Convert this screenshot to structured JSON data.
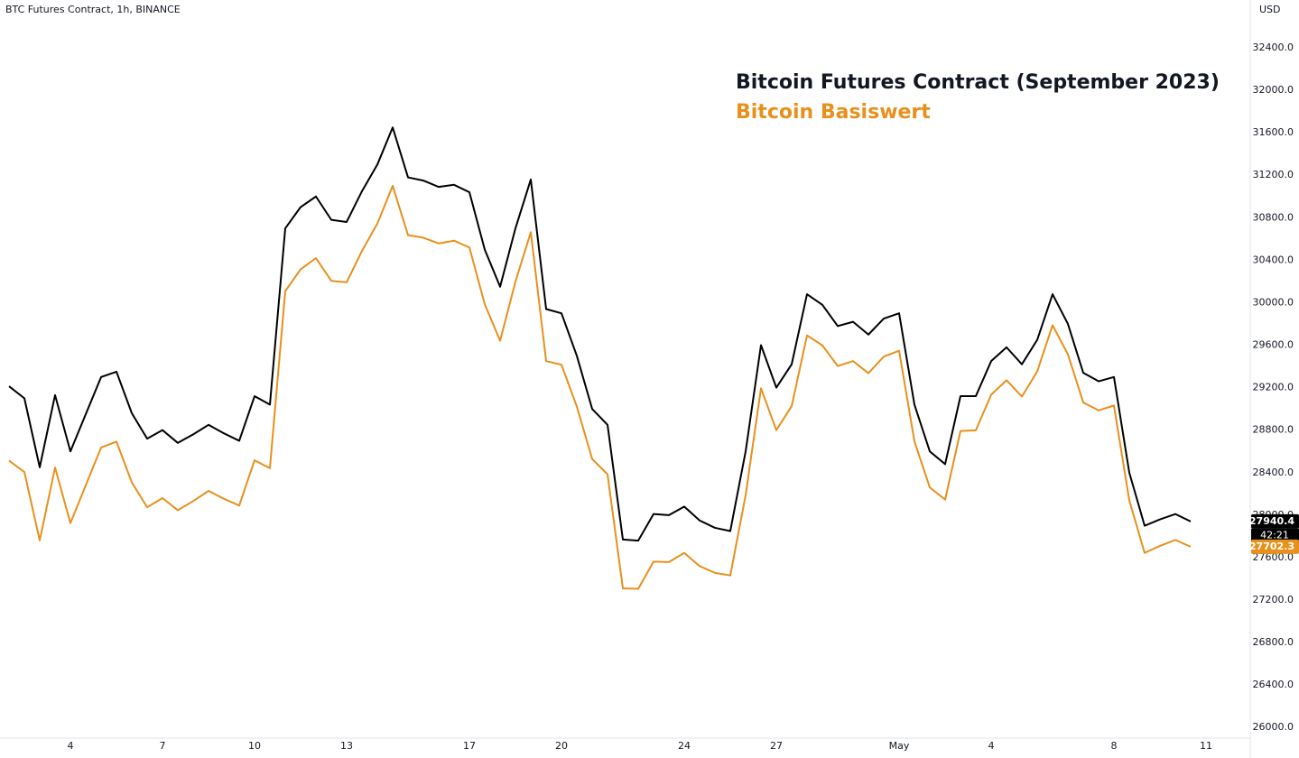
{
  "header": "BTC Futures Contract, 1h, BINANCE",
  "chart_data": {
    "type": "line",
    "y_axis_label": "USD",
    "countdown": "42:21",
    "categories": [
      null,
      null,
      null,
      null,
      "4",
      null,
      null,
      null,
      null,
      null,
      "7",
      null,
      null,
      null,
      null,
      null,
      "10",
      null,
      null,
      null,
      null,
      null,
      "13",
      null,
      null,
      null,
      null,
      null,
      null,
      null,
      "17",
      null,
      null,
      null,
      null,
      null,
      "20",
      null,
      null,
      null,
      null,
      null,
      null,
      null,
      "24",
      null,
      null,
      null,
      null,
      null,
      "27",
      null,
      null,
      null,
      null,
      null,
      null,
      null,
      "May",
      null,
      null,
      null,
      null,
      null,
      "4",
      null,
      null,
      null,
      null,
      null,
      null,
      null,
      "8",
      null,
      null,
      null,
      null,
      null,
      "11"
    ],
    "series": [
      {
        "name": "Bitcoin Futures Contract (September 2023)",
        "color": "#000000",
        "values": [
          29213,
          29100,
          28450,
          29130,
          28600,
          28950,
          29300,
          29350,
          28960,
          28720,
          28800,
          28680,
          28760,
          28850,
          28770,
          28700,
          29120,
          29040,
          30700,
          30900,
          31000,
          30780,
          30760,
          31050,
          31300,
          31650,
          31180,
          31150,
          31090,
          31110,
          31040,
          30500,
          30150,
          30700,
          31160,
          29940,
          29900,
          29500,
          29000,
          28850,
          27770,
          27760,
          28010,
          28000,
          28080,
          27950,
          27880,
          27850,
          28600,
          29600,
          29200,
          29420,
          30080,
          29980,
          29780,
          29820,
          29700,
          29850,
          29900,
          29040,
          28600,
          28480,
          29120,
          29120,
          29450,
          29580,
          29420,
          29650,
          30080,
          29800,
          29340,
          29260,
          29300,
          28400,
          27900,
          27960,
          28010,
          27940.4,
          null
        ]
      },
      {
        "name": "Bitcoin Basiswert",
        "color": "#e8901c",
        "values": [
          28513,
          28406,
          27762,
          28448,
          27924,
          28280,
          28636,
          28692,
          28308,
          28074,
          28160,
          28046,
          28132,
          28228,
          28154,
          28090,
          28516,
          28442,
          30108,
          30314,
          30420,
          30206,
          30192,
          30488,
          30744,
          31100,
          30636,
          30612,
          30558,
          30584,
          30520,
          29986,
          29642,
          30198,
          30664,
          29450,
          29416,
          29022,
          28528,
          28384,
          27310,
          27306,
          27562,
          27558,
          27644,
          27520,
          27456,
          27432,
          28188,
          29194,
          28800,
          29026,
          29692,
          29598,
          29404,
          29450,
          29336,
          29492,
          29548,
          28694,
          28260,
          28146,
          28792,
          28798,
          29134,
          29270,
          29116,
          29352,
          29788,
          29514,
          29060,
          28986,
          29032,
          28138,
          27644,
          27710,
          27766,
          27702.3,
          null
        ]
      }
    ],
    "ylim": [
      25900,
      32850
    ],
    "yticks": [
      {
        "value": 26000,
        "label": "26000.0"
      },
      {
        "value": 26400,
        "label": "26400.0"
      },
      {
        "value": 26800,
        "label": "26800.0"
      },
      {
        "value": 27200,
        "label": "27200.0"
      },
      {
        "value": 27600,
        "label": "27600.0"
      },
      {
        "value": 28000,
        "label": "28000.0"
      },
      {
        "value": 28400,
        "label": "28400.0"
      },
      {
        "value": 28800,
        "label": "28800.0"
      },
      {
        "value": 29200,
        "label": "29200.0"
      },
      {
        "value": 29600,
        "label": "29600.0"
      },
      {
        "value": 30000,
        "label": "30000.0"
      },
      {
        "value": 30400,
        "label": "30400.0"
      },
      {
        "value": 30800,
        "label": "30800.0"
      },
      {
        "value": 31200,
        "label": "31200.0"
      },
      {
        "value": 31600,
        "label": "31600.0"
      },
      {
        "value": 32000,
        "label": "32000.0"
      },
      {
        "value": 32400,
        "label": "32400.0"
      }
    ],
    "grid": false
  }
}
